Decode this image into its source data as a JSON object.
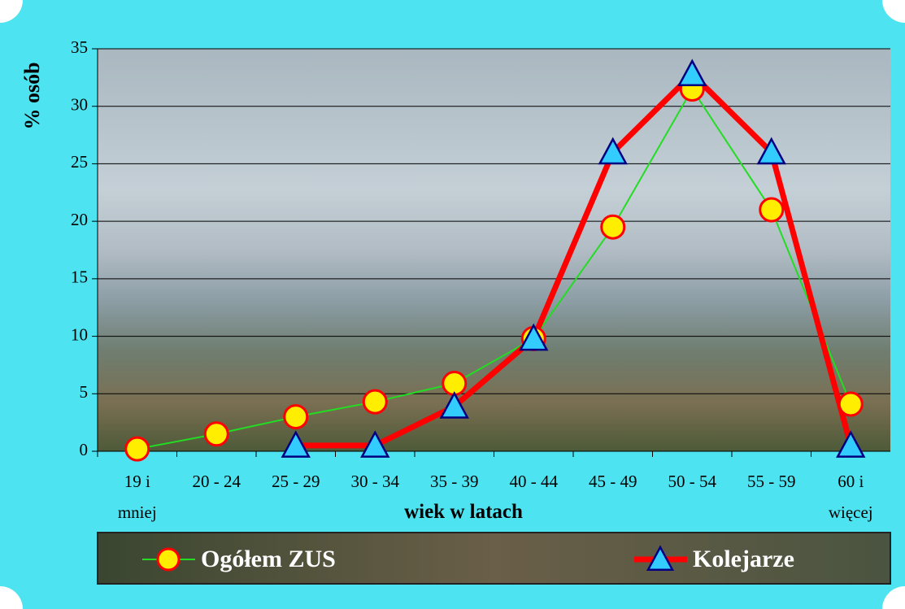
{
  "chart_data": {
    "type": "line",
    "y_label": "% osób",
    "x_label": "wiek w latach",
    "categories": [
      "19 i mniej",
      "20 - 24",
      "25 - 29",
      "30 - 34",
      "35 - 39",
      "40 - 44",
      "45 - 49",
      "50 - 54",
      "55 - 59",
      "60 i więcej"
    ],
    "series": [
      {
        "name": "Ogółem ZUS",
        "color": "#22dd22",
        "marker": "circle",
        "marker_fill": "#ffee00",
        "marker_stroke": "#ff0000",
        "width": 2,
        "values": [
          0.2,
          1.5,
          3.0,
          4.3,
          5.9,
          9.8,
          19.5,
          31.5,
          21.0,
          4.1
        ]
      },
      {
        "name": "Kolejarze",
        "color": "#ff0000",
        "marker": "triangle",
        "marker_fill": "#33ccff",
        "marker_stroke": "#000080",
        "width": 7,
        "values": [
          null,
          null,
          0.5,
          0.5,
          3.9,
          9.8,
          26.0,
          32.8,
          26.0,
          0.5
        ]
      }
    ],
    "ylim": [
      0,
      35
    ],
    "yticks": [
      0,
      5,
      10,
      15,
      20,
      25,
      30,
      35
    ],
    "grid": true
  }
}
